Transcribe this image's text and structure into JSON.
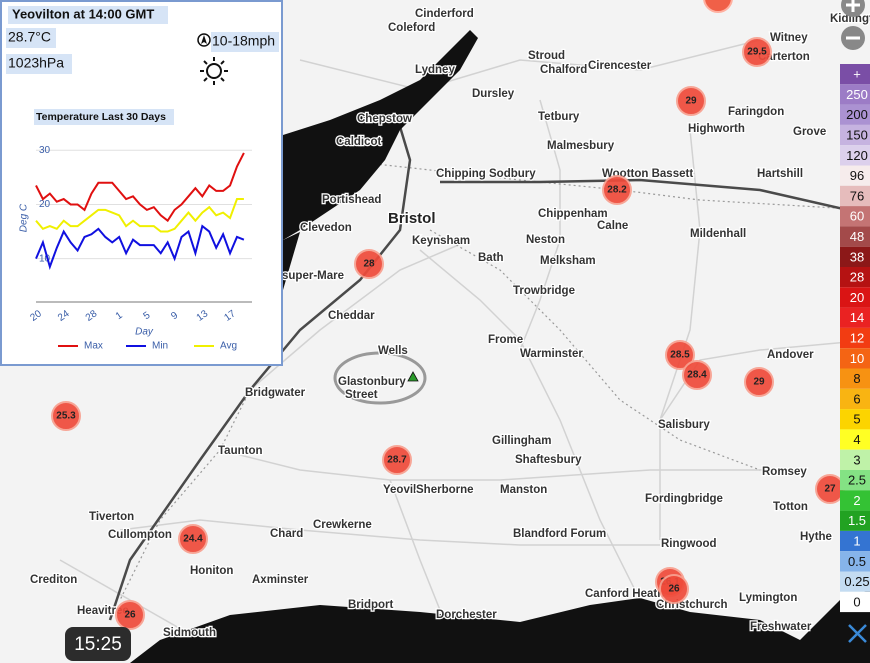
{
  "popup": {
    "title": "Yeovilton at 14:00 GMT",
    "temperature": "28.7°C",
    "pressure": "1023hPa",
    "wind": "10-18mph"
  },
  "chart_data": {
    "type": "line",
    "title": "Temperature Last 30 Days",
    "y_label": "Deg C",
    "x_label": "Day",
    "categories": [
      "20",
      null,
      null,
      null,
      "24",
      null,
      null,
      null,
      "28",
      null,
      null,
      null,
      "1",
      null,
      null,
      null,
      "5",
      null,
      null,
      null,
      "9",
      null,
      null,
      null,
      "13",
      null,
      null,
      null,
      "17",
      null,
      null
    ],
    "series": [
      {
        "name": "Max",
        "color": "#e01010",
        "values": [
          23.5,
          21,
          22,
          20.5,
          21,
          20,
          20,
          19,
          22,
          24,
          24,
          24,
          22.5,
          21,
          21.5,
          20,
          19,
          19.5,
          18,
          17,
          19,
          20,
          21.5,
          23,
          21.5,
          23.5,
          22.5,
          22.5,
          23.5,
          27,
          29.5
        ]
      },
      {
        "name": "Min",
        "color": "#1010e0",
        "values": [
          10,
          13,
          8.5,
          12,
          15,
          13,
          11.5,
          14,
          14.5,
          15.5,
          14,
          13,
          14,
          11,
          13.5,
          12.5,
          12.5,
          12.5,
          11,
          13,
          10,
          14,
          15,
          11,
          16,
          15,
          12,
          14.5,
          11,
          14,
          13.5
        ]
      },
      {
        "name": "Avg",
        "color": "#f0f000",
        "values": [
          17,
          15.5,
          16,
          15.5,
          17,
          16,
          16,
          17,
          18,
          19,
          19,
          18.5,
          18,
          16,
          17,
          16,
          16,
          16,
          15,
          15,
          15.5,
          17,
          18.5,
          17,
          18.5,
          19.5,
          18,
          18.5,
          17.5,
          21,
          21
        ]
      }
    ],
    "ylim": [
      2,
      33
    ],
    "yticks": [
      10,
      20,
      30
    ],
    "grid": true
  },
  "places": [
    "Cinderford",
    "Coleford",
    "Lydney",
    "Stroud",
    "Chalford",
    "Cirencester",
    "Witney",
    "Carterton",
    "Kidlington",
    "Dursley",
    "Chepstow",
    "Tetbury",
    "Faringdon",
    "Highworth",
    "Grove",
    "Caldicot",
    "Malmesbury",
    "Chipping Sodbury",
    "Wootton Bassett",
    "Hartshill",
    "Portishead",
    "Bristol",
    "Chippenham",
    "Calne",
    "Clevedon",
    "Keynsham",
    "Mildenhall",
    "Neston",
    "Bath",
    "Melksham",
    "super-Mare",
    "Trowbridge",
    "Cheddar",
    "Wells",
    "Frome",
    "Warminster",
    "Andover",
    "Bridgwater",
    "Glastonbury",
    "Street",
    "Salisbury",
    "Gillingham",
    "Shaftesbury",
    "Taunton",
    "Romsey",
    "Yeovil",
    "Sherborne",
    "Manston",
    "Fordingbridge",
    "Totton",
    "Tiverton",
    "Cullompton",
    "Crewkerne",
    "Chard",
    "Blandford Forum",
    "Ringwood",
    "Honiton",
    "Axminster",
    "Crediton",
    "Canford Heath",
    "Christchurch",
    "Lymington",
    "Hythe",
    "Bridport",
    "Dorchester",
    "Heavitree",
    "Sidmouth",
    "Freshwater"
  ],
  "stations": [
    28,
    28.7,
    25.3,
    24.4,
    26,
    26.1,
    26,
    28.2,
    29.5,
    29,
    28.5,
    28.4,
    29,
    27
  ],
  "legend": {
    "items": [
      {
        "label": "+",
        "color": "#7a4ea6"
      },
      {
        "label": 250,
        "color": "#9c7cc6"
      },
      {
        "label": 200,
        "color": "#ab92d2"
      },
      {
        "label": 150,
        "color": "#c6b3e0"
      },
      {
        "label": 120,
        "color": "#dcd0ec"
      },
      {
        "label": 96,
        "color": "#f6ecec"
      },
      {
        "label": 76,
        "color": "#e6bcbc"
      },
      {
        "label": 60,
        "color": "#c47474"
      },
      {
        "label": 48,
        "color": "#a34a4a"
      },
      {
        "label": 38,
        "color": "#8c1818"
      },
      {
        "label": 28,
        "color": "#b51212"
      },
      {
        "label": 20,
        "color": "#da1414"
      },
      {
        "label": 14,
        "color": "#ea2222"
      },
      {
        "label": 12,
        "color": "#f23c12"
      },
      {
        "label": 10,
        "color": "#f46414"
      },
      {
        "label": 8,
        "color": "#f79212"
      },
      {
        "label": 6,
        "color": "#f9b412"
      },
      {
        "label": 5,
        "color": "#fcd400"
      },
      {
        "label": 4,
        "color": "#ffff24"
      },
      {
        "label": 3,
        "color": "#bff2a8"
      },
      {
        "label": 2.5,
        "color": "#84e284"
      },
      {
        "label": 2,
        "color": "#34c234"
      },
      {
        "label": 1.5,
        "color": "#22a222"
      },
      {
        "label": 1,
        "color": "#3474d2"
      },
      {
        "label": 0.5,
        "color": "#86b4ea"
      },
      {
        "label": 0.25,
        "color": "#c4dcf2"
      },
      {
        "label": 0,
        "color": "#ffffff"
      }
    ]
  },
  "time": "15:25"
}
